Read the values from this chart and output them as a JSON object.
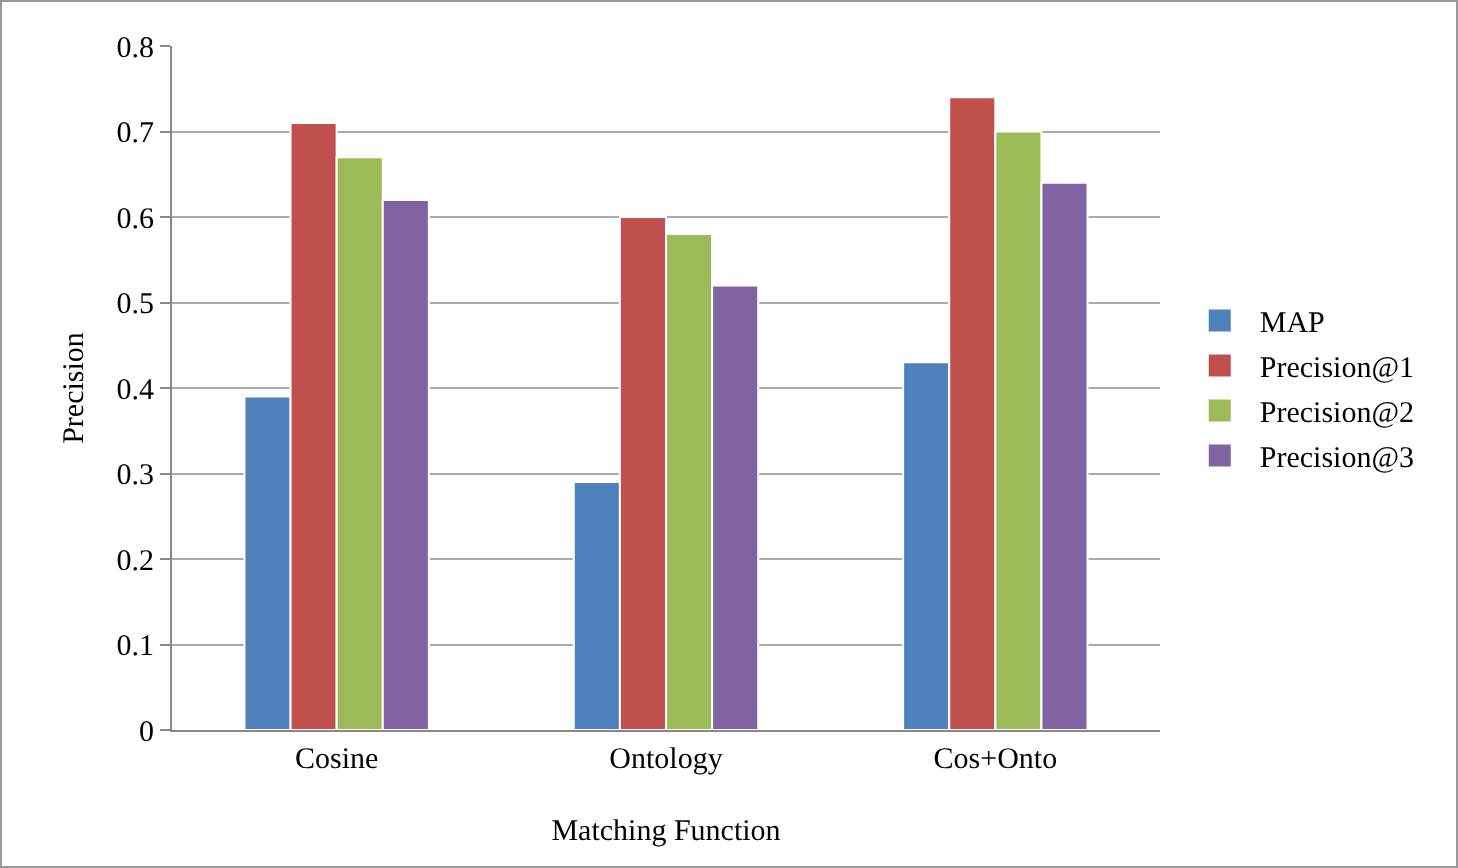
{
  "chart_data": {
    "type": "bar",
    "xlabel": "Matching Function",
    "ylabel": "Precision",
    "categories": [
      "Cosine",
      "Ontology",
      "Cos+Onto"
    ],
    "series": [
      {
        "name": "MAP",
        "color": "#4f81bd",
        "values": [
          0.39,
          0.29,
          0.43
        ]
      },
      {
        "name": "Precision@1",
        "color": "#c0504d",
        "values": [
          0.71,
          0.6,
          0.74
        ]
      },
      {
        "name": "Precision@2",
        "color": "#9bbb59",
        "values": [
          0.67,
          0.58,
          0.7
        ]
      },
      {
        "name": "Precision@3",
        "color": "#8064a2",
        "values": [
          0.62,
          0.52,
          0.64
        ]
      }
    ],
    "ylim": [
      0,
      0.8
    ],
    "yticks": [
      0,
      0.1,
      0.2,
      0.3,
      0.4,
      0.5,
      0.6,
      0.7,
      0.8
    ],
    "grid": "y",
    "legend": "right"
  }
}
